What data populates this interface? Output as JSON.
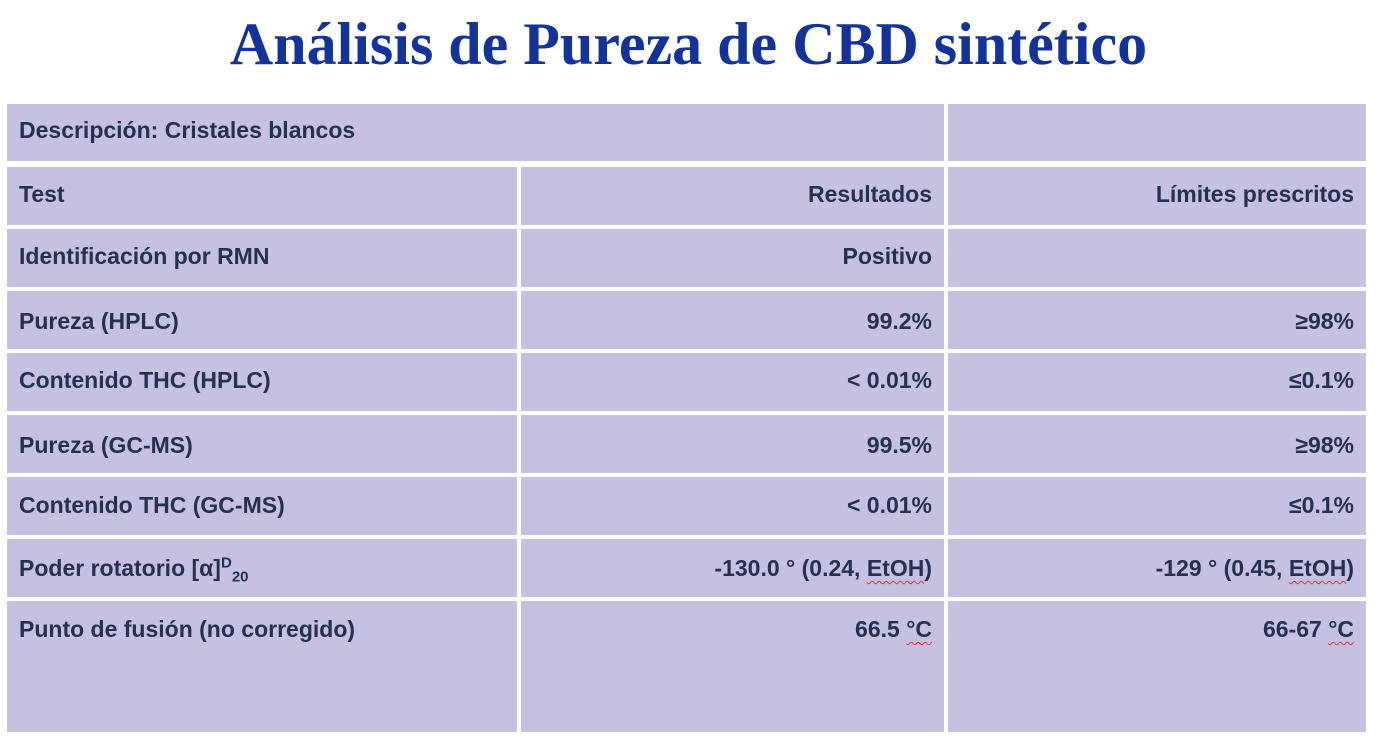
{
  "title": "Análisis de Pureza de CBD sintético",
  "description": "Descripción: Cristales blancos",
  "headers": {
    "test": "Test",
    "results": "Resultados",
    "limits": "Límites prescritos"
  },
  "rows": [
    {
      "test": "Identificación por RMN",
      "result": "Positivo",
      "limit": ""
    },
    {
      "test": "Pureza (HPLC)",
      "result": "99.2%",
      "limit": "≥98%"
    },
    {
      "test": "Contenido THC (HPLC)",
      "result": "< 0.01%",
      "limit": "≤0.1%"
    },
    {
      "test": "Pureza (GC-MS)",
      "result": "99.5%",
      "limit": "≥98%"
    },
    {
      "test": "Contenido THC (GC-MS)",
      "result": "< 0.01%",
      "limit": "≤0.1%"
    },
    {
      "test": "Poder rotatorio [α]",
      "test_sup": "D",
      "test_sub": "20",
      "result_pre": "-130.0 ° (0.24, ",
      "result_ul": "EtOH",
      "result_post": ")",
      "limit_pre": "-129 ° (0.45, ",
      "limit_ul": "EtOH",
      "limit_post": ")"
    },
    {
      "test": "Punto de fusión (no corregido)",
      "result_pre": "66.5 ",
      "result_ul": "°C",
      "limit_pre": "66-67 ",
      "limit_ul": "°C"
    }
  ]
}
